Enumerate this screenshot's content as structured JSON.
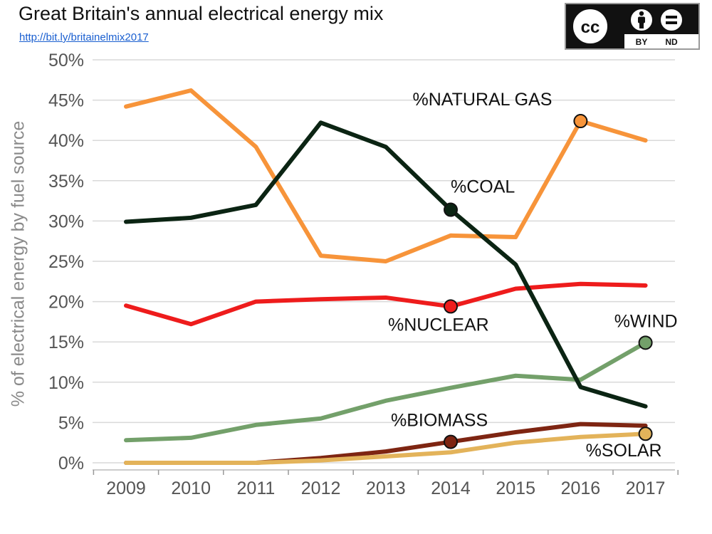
{
  "header": {
    "title": "Great Britain's annual electrical energy mix",
    "link": "http://bit.ly/britainelmix2017"
  },
  "license": {
    "cc": "cc",
    "by": "BY",
    "nd": "ND",
    "icons": [
      "cc-icon",
      "person-icon",
      "equals-icon"
    ]
  },
  "chart_data": {
    "type": "line",
    "title": "Great Britain's annual electrical energy mix",
    "xlabel": "",
    "ylabel": "% of electrical energy by fuel source",
    "x": [
      "2009",
      "2010",
      "2011",
      "2012",
      "2013",
      "2014",
      "2015",
      "2016",
      "2017"
    ],
    "y_ticks": [
      "0%",
      "5%",
      "10%",
      "15%",
      "20%",
      "25%",
      "30%",
      "35%",
      "40%",
      "45%",
      "50%"
    ],
    "ylim": [
      0,
      50
    ],
    "grid": true,
    "series": [
      {
        "name": "%NATURAL GAS",
        "color": "#f7943a",
        "values": [
          44.2,
          46.2,
          39.2,
          25.7,
          25.0,
          28.2,
          28.0,
          42.4,
          40.0
        ],
        "marker_index": 7
      },
      {
        "name": "%COAL",
        "color": "#0b2413",
        "values": [
          29.9,
          30.4,
          32.0,
          42.2,
          39.2,
          31.4,
          24.6,
          9.4,
          7.0
        ],
        "marker_index": 5
      },
      {
        "name": "%NUCLEAR",
        "color": "#ee1c1c",
        "values": [
          19.5,
          17.2,
          20.0,
          20.3,
          20.5,
          19.4,
          21.6,
          22.2,
          22.0
        ],
        "marker_index": 5
      },
      {
        "name": "%WIND",
        "color": "#73a06a",
        "values": [
          2.8,
          3.1,
          4.7,
          5.5,
          7.7,
          9.3,
          10.8,
          10.3,
          14.9
        ],
        "marker_index": 8
      },
      {
        "name": "%BIOMASS",
        "color": "#7e2512",
        "values": [
          0.0,
          0.0,
          0.0,
          0.6,
          1.4,
          2.6,
          3.8,
          4.8,
          4.6
        ],
        "marker_index": 5
      },
      {
        "name": "%SOLAR",
        "color": "#e3b35a",
        "values": [
          0.0,
          0.0,
          0.0,
          0.3,
          0.8,
          1.3,
          2.5,
          3.2,
          3.6
        ],
        "marker_index": 8
      }
    ]
  }
}
